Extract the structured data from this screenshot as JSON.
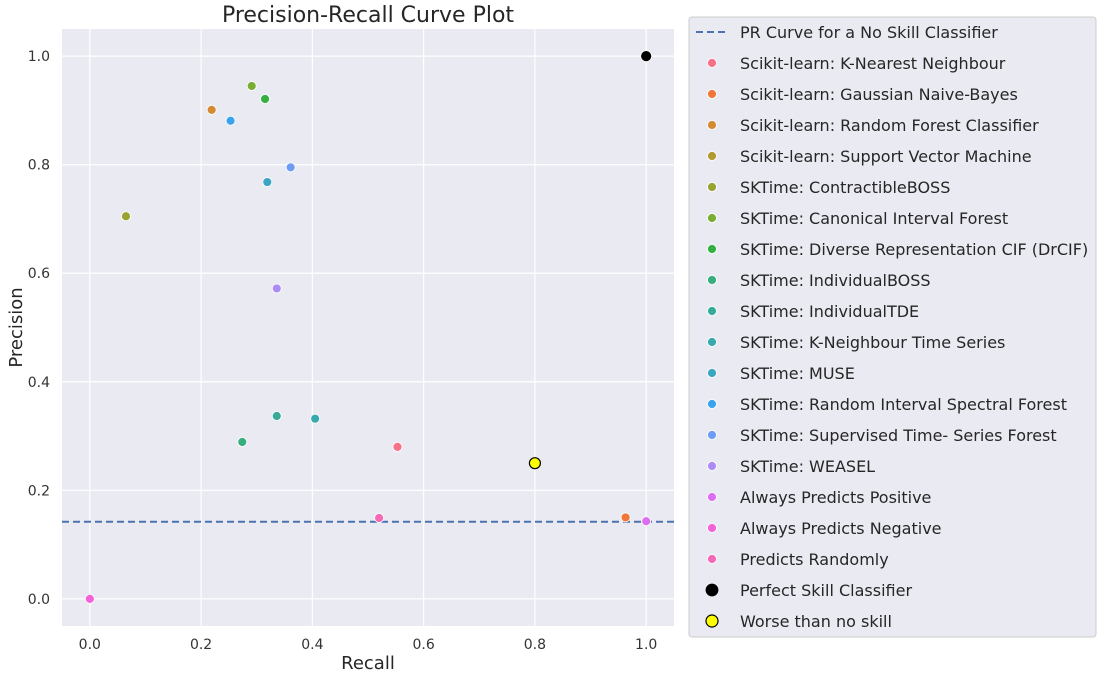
{
  "chart_data": {
    "type": "scatter",
    "title": "Precision-Recall Curve Plot",
    "xlabel": "Recall",
    "ylabel": "Precision",
    "xlim": [
      -0.05,
      1.05
    ],
    "ylim": [
      -0.05,
      1.05
    ],
    "x_ticks": [
      0.0,
      0.2,
      0.4,
      0.6,
      0.8,
      1.0
    ],
    "y_ticks": [
      0.0,
      0.2,
      0.4,
      0.6,
      0.8,
      1.0
    ],
    "x_tick_labels": [
      "0.0",
      "0.2",
      "0.4",
      "0.6",
      "0.8",
      "1.0"
    ],
    "y_tick_labels": [
      "0.0",
      "0.2",
      "0.4",
      "0.6",
      "0.8",
      "1.0"
    ],
    "grid": true,
    "background": "#eaeaf2",
    "legend_placement": "outside-right",
    "no_skill_line": {
      "name": "PR Curve for a No Skill Classifier",
      "y": 0.142,
      "color": "#4c72b0",
      "style": "dashed"
    },
    "series": [
      {
        "name": "Scikit-learn: K-Nearest Neighbour",
        "x": 0.553,
        "y": 0.28,
        "color": "#f77189"
      },
      {
        "name": "Scikit-learn: Gaussian Naive-Bayes",
        "x": 0.963,
        "y": 0.15,
        "color": "#f0763a"
      },
      {
        "name": "Scikit-learn: Random Forest Classifier",
        "x": 0.219,
        "y": 0.901,
        "color": "#d58b31"
      },
      {
        "name": "Scikit-learn: Support Vector Machine",
        "x": 0.291,
        "y": 0.945,
        "color": "#b19a32"
      },
      {
        "name": "SKTime: ContractibleBOSS",
        "x": 0.065,
        "y": 0.705,
        "color": "#97a431"
      },
      {
        "name": "SKTime: Canonical Interval Forest",
        "x": 0.291,
        "y": 0.945,
        "color": "#7aae32"
      },
      {
        "name": "SKTime: Diverse Representation CIF (DrCIF)",
        "x": 0.315,
        "y": 0.921,
        "color": "#33b040"
      },
      {
        "name": "SKTime: IndividualBOSS",
        "x": 0.274,
        "y": 0.289,
        "color": "#36ae7e"
      },
      {
        "name": "SKTime: IndividualTDE",
        "x": 0.336,
        "y": 0.337,
        "color": "#37ab9a"
      },
      {
        "name": "SKTime: K-Neighbour Time Series",
        "x": 0.405,
        "y": 0.332,
        "color": "#38a9ae"
      },
      {
        "name": "SKTime: MUSE",
        "x": 0.319,
        "y": 0.768,
        "color": "#3aa6c2"
      },
      {
        "name": "SKTime: Random Interval Spectral Forest",
        "x": 0.253,
        "y": 0.881,
        "color": "#3ba3ec"
      },
      {
        "name": "SKTime: Supervised Time- Series Forest",
        "x": 0.361,
        "y": 0.795,
        "color": "#6e9bf4"
      },
      {
        "name": "SKTime: WEASEL",
        "x": 0.336,
        "y": 0.572,
        "color": "#ac8cf4"
      },
      {
        "name": "Always Predicts Positive",
        "x": 1.0,
        "y": 0.143,
        "color": "#dc6ff0"
      },
      {
        "name": "Always Predicts Negative",
        "x": 0.0,
        "y": 0.0,
        "color": "#f462d8"
      },
      {
        "name": "Predicts Randomly",
        "x": 0.52,
        "y": 0.149,
        "color": "#f669b7"
      },
      {
        "name": "Perfect Skill Classifier",
        "x": 1.0,
        "y": 1.0,
        "color": "#000000",
        "large": true
      },
      {
        "name": "Worse than no skill",
        "x": 0.8,
        "y": 0.25,
        "color": "#ffff00",
        "large": true,
        "edge": "#000000"
      }
    ]
  }
}
